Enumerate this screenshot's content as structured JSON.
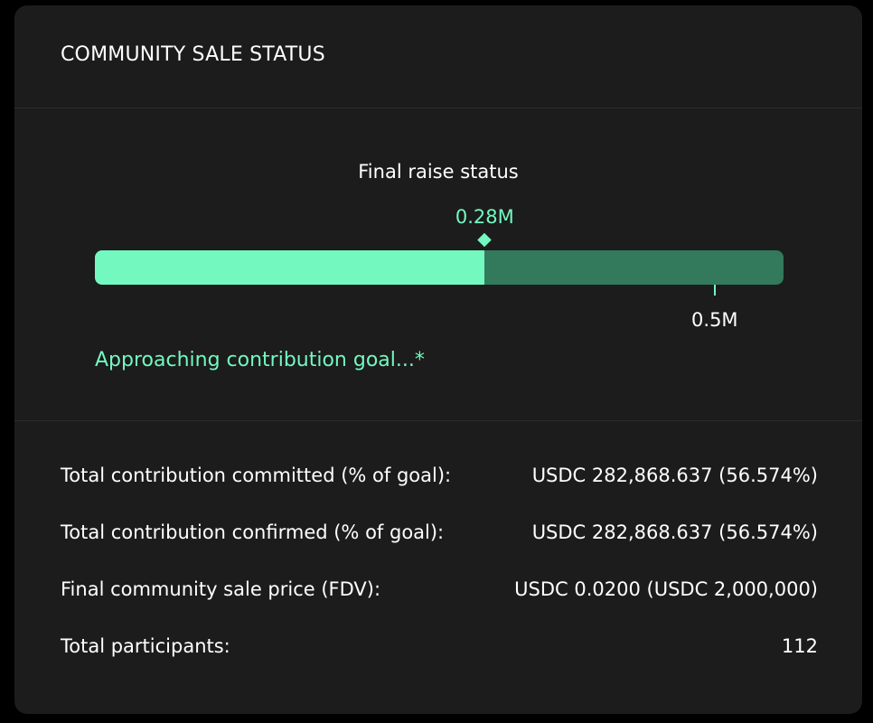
{
  "header": {
    "title": "COMMUNITY SALE STATUS"
  },
  "raise": {
    "label": "Final raise status",
    "current_label": "0.28M",
    "goal_label": "0.5M",
    "progress_fraction": 0.566,
    "goal_fraction": 0.9,
    "status_text": "Approaching contribution goal...*"
  },
  "stats": [
    {
      "label": "Total contribution committed (% of goal):",
      "value": "USDC 282,868.637 (56.574%)"
    },
    {
      "label": "Total contribution confirmed (% of goal):",
      "value": "USDC 282,868.637 (56.574%)"
    },
    {
      "label": "Final community sale price (FDV):",
      "value": "USDC 0.0200 (USDC 2,000,000)"
    },
    {
      "label": "Total participants:",
      "value": "112"
    }
  ],
  "colors": {
    "accent": "#73f9c0",
    "track": "#33795c",
    "card": "#1c1c1c",
    "background": "#000000"
  }
}
